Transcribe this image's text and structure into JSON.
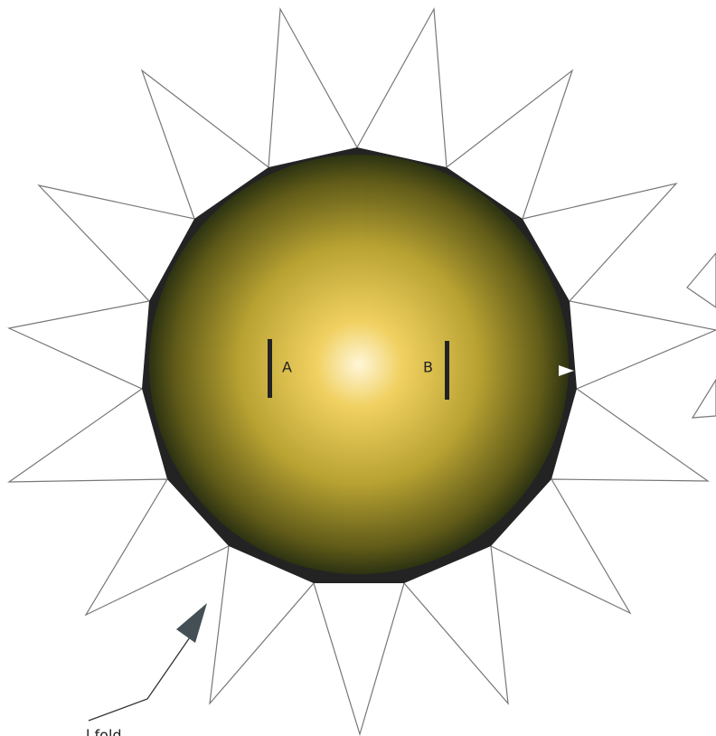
{
  "labels": {
    "a": "A",
    "b": "B",
    "callout": "l fold"
  }
}
